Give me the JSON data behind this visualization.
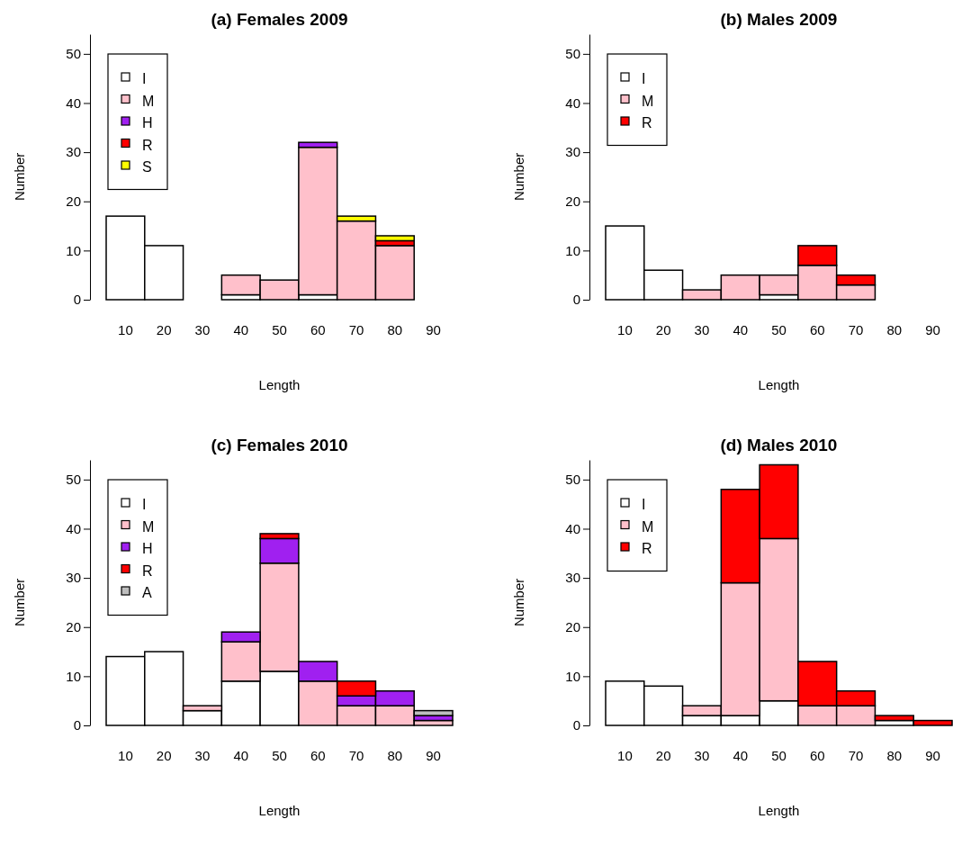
{
  "chart_data": [
    {
      "type": "bar",
      "stacked": true,
      "title": "(a) Females 2009",
      "xlabel": "Length",
      "ylabel": "Number",
      "categories": [
        "10",
        "20",
        "30",
        "40",
        "50",
        "60",
        "70",
        "80",
        "90"
      ],
      "ylim": [
        0,
        54
      ],
      "yticks": [
        0,
        10,
        20,
        30,
        40,
        50
      ],
      "legend": "top left",
      "series": [
        {
          "name": "I",
          "color": "#ffffff",
          "values": [
            17,
            11,
            0,
            1,
            0,
            1,
            0,
            0,
            0
          ]
        },
        {
          "name": "M",
          "color": "#ffc0cb",
          "values": [
            0,
            0,
            0,
            4,
            4,
            30,
            16,
            11,
            0
          ]
        },
        {
          "name": "H",
          "color": "#a020f0",
          "values": [
            0,
            0,
            0,
            0,
            0,
            1,
            0,
            0,
            0
          ]
        },
        {
          "name": "R",
          "color": "#ff0000",
          "values": [
            0,
            0,
            0,
            0,
            0,
            0,
            0,
            1,
            0
          ]
        },
        {
          "name": "S",
          "color": "#ffff00",
          "values": [
            0,
            0,
            0,
            0,
            0,
            0,
            1,
            1,
            0
          ]
        }
      ]
    },
    {
      "type": "bar",
      "stacked": true,
      "title": "(b) Males 2009",
      "xlabel": "Length",
      "ylabel": "Number",
      "categories": [
        "10",
        "20",
        "30",
        "40",
        "50",
        "60",
        "70",
        "80",
        "90"
      ],
      "ylim": [
        0,
        54
      ],
      "yticks": [
        0,
        10,
        20,
        30,
        40,
        50
      ],
      "legend": "top left",
      "series": [
        {
          "name": "I",
          "color": "#ffffff",
          "values": [
            15,
            6,
            0,
            0,
            1,
            0,
            0,
            0,
            0
          ]
        },
        {
          "name": "M",
          "color": "#ffc0cb",
          "values": [
            0,
            0,
            2,
            5,
            4,
            7,
            3,
            0,
            0
          ]
        },
        {
          "name": "R",
          "color": "#ff0000",
          "values": [
            0,
            0,
            0,
            0,
            0,
            4,
            2,
            0,
            0
          ]
        }
      ]
    },
    {
      "type": "bar",
      "stacked": true,
      "title": "(c) Females 2010",
      "xlabel": "Length",
      "ylabel": "Number",
      "categories": [
        "10",
        "20",
        "30",
        "40",
        "50",
        "60",
        "70",
        "80",
        "90"
      ],
      "ylim": [
        0,
        54
      ],
      "yticks": [
        0,
        10,
        20,
        30,
        40,
        50
      ],
      "legend": "top left",
      "series": [
        {
          "name": "I",
          "color": "#ffffff",
          "values": [
            14,
            15,
            3,
            9,
            11,
            0,
            0,
            0,
            0
          ]
        },
        {
          "name": "M",
          "color": "#ffc0cb",
          "values": [
            0,
            0,
            1,
            8,
            22,
            9,
            4,
            4,
            1
          ]
        },
        {
          "name": "H",
          "color": "#a020f0",
          "values": [
            0,
            0,
            0,
            2,
            5,
            4,
            2,
            3,
            1
          ]
        },
        {
          "name": "R",
          "color": "#ff0000",
          "values": [
            0,
            0,
            0,
            0,
            1,
            0,
            3,
            0,
            0
          ]
        },
        {
          "name": "A",
          "color": "#bebebe",
          "values": [
            0,
            0,
            0,
            0,
            0,
            0,
            0,
            0,
            1
          ]
        }
      ]
    },
    {
      "type": "bar",
      "stacked": true,
      "title": "(d) Males 2010",
      "xlabel": "Length",
      "ylabel": "Number",
      "categories": [
        "10",
        "20",
        "30",
        "40",
        "50",
        "60",
        "70",
        "80",
        "90"
      ],
      "ylim": [
        0,
        54
      ],
      "yticks": [
        0,
        10,
        20,
        30,
        40,
        50
      ],
      "legend": "top left",
      "series": [
        {
          "name": "I",
          "color": "#ffffff",
          "values": [
            9,
            8,
            2,
            2,
            5,
            0,
            0,
            1,
            0
          ]
        },
        {
          "name": "M",
          "color": "#ffc0cb",
          "values": [
            0,
            0,
            2,
            27,
            33,
            4,
            4,
            0,
            0
          ]
        },
        {
          "name": "R",
          "color": "#ff0000",
          "values": [
            0,
            0,
            0,
            19,
            15,
            9,
            3,
            1,
            1
          ]
        }
      ]
    }
  ]
}
